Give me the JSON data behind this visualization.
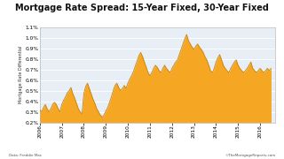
{
  "title": "Mortgage Rate Spread: 15-Year Fixed, 30-Year Fixed",
  "ylabel": "Mortgage Rate Differential",
  "xlabel_note": "Data: Freddie Mac",
  "copyright": "©TheMortgageReports.com",
  "fill_color": "#F5A623",
  "line_color": "#C8830A",
  "bg_color": "#E8EEF5",
  "plot_bg": "#FFFFFF",
  "footer_bg": "#FFFFFF",
  "ylim_min": 0.2,
  "ylim_max": 1.1,
  "xlim_min": 2006.0,
  "xlim_max": 2016.7,
  "year_ticks": [
    2006,
    2007,
    2008,
    2009,
    2010,
    2011,
    2012,
    2013,
    2014,
    2015,
    2016
  ],
  "x_months": [
    0,
    1,
    2,
    3,
    4,
    5,
    6,
    7,
    8,
    9,
    10,
    11,
    12,
    13,
    14,
    15,
    16,
    17,
    18,
    19,
    20,
    21,
    22,
    23,
    24,
    25,
    26,
    27,
    28,
    29,
    30,
    31,
    32,
    33,
    34,
    35,
    36,
    37,
    38,
    39,
    40,
    41,
    42,
    43,
    44,
    45,
    46,
    47,
    48,
    49,
    50,
    51,
    52,
    53,
    54,
    55,
    56,
    57,
    58,
    59,
    60,
    61,
    62,
    63,
    64,
    65,
    66,
    67,
    68,
    69,
    70,
    71,
    72,
    73,
    74,
    75,
    76,
    77,
    78,
    79,
    80,
    81,
    82,
    83,
    84,
    85,
    86,
    87,
    88,
    89,
    90,
    91,
    92,
    93,
    94,
    95,
    96,
    97,
    98,
    99,
    100,
    101,
    102,
    103,
    104,
    105,
    106,
    107,
    108,
    109,
    110,
    111,
    112,
    113,
    114,
    115,
    116,
    117,
    118,
    119,
    120,
    121,
    122,
    123,
    124,
    125,
    126
  ],
  "y": [
    0.32,
    0.3,
    0.34,
    0.37,
    0.33,
    0.3,
    0.33,
    0.37,
    0.39,
    0.37,
    0.33,
    0.3,
    0.37,
    0.41,
    0.44,
    0.48,
    0.5,
    0.53,
    0.47,
    0.43,
    0.38,
    0.33,
    0.3,
    0.28,
    0.47,
    0.54,
    0.57,
    0.52,
    0.47,
    0.42,
    0.38,
    0.33,
    0.3,
    0.27,
    0.25,
    0.27,
    0.31,
    0.34,
    0.39,
    0.44,
    0.5,
    0.55,
    0.57,
    0.53,
    0.5,
    0.52,
    0.55,
    0.52,
    0.57,
    0.61,
    0.64,
    0.68,
    0.73,
    0.78,
    0.83,
    0.86,
    0.82,
    0.77,
    0.72,
    0.67,
    0.64,
    0.67,
    0.71,
    0.74,
    0.72,
    0.69,
    0.67,
    0.71,
    0.74,
    0.71,
    0.69,
    0.67,
    0.71,
    0.74,
    0.77,
    0.79,
    0.84,
    0.89,
    0.94,
    0.99,
    1.03,
    0.97,
    0.94,
    0.91,
    0.89,
    0.92,
    0.94,
    0.91,
    0.89,
    0.86,
    0.82,
    0.79,
    0.74,
    0.69,
    0.67,
    0.71,
    0.77,
    0.81,
    0.84,
    0.79,
    0.74,
    0.71,
    0.69,
    0.67,
    0.71,
    0.74,
    0.77,
    0.79,
    0.74,
    0.71,
    0.69,
    0.67,
    0.69,
    0.71,
    0.74,
    0.77,
    0.71,
    0.69,
    0.67,
    0.69,
    0.71,
    0.69,
    0.67,
    0.69,
    0.71,
    0.69,
    0.71
  ]
}
